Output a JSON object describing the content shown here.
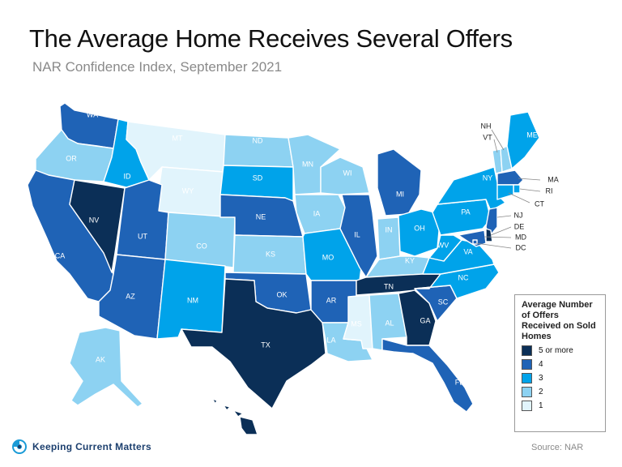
{
  "title": "The Average Home Receives Several Offers",
  "subtitle": "NAR Confidence Index, September 2021",
  "colors": {
    "5": "#0b2f57",
    "4": "#1f63b6",
    "3": "#00a3ea",
    "2": "#8dd2f2",
    "1": "#e1f4fc"
  },
  "legend": {
    "title": "Average Number of Offers Received on Sold Homes",
    "items": [
      {
        "label": "5 or more",
        "level": "5"
      },
      {
        "label": "4",
        "level": "4"
      },
      {
        "label": "3",
        "level": "3"
      },
      {
        "label": "2",
        "level": "2"
      },
      {
        "label": "1",
        "level": "1"
      }
    ]
  },
  "states": {
    "WA": 4,
    "OR": 2,
    "CA": 4,
    "NV": 5,
    "ID": 3,
    "MT": 1,
    "WY": 1,
    "UT": 4,
    "AZ": 4,
    "CO": 2,
    "NM": 3,
    "ND": 2,
    "SD": 3,
    "NE": 4,
    "KS": 2,
    "OK": 4,
    "TX": 5,
    "MN": 2,
    "IA": 2,
    "MO": 3,
    "AR": 4,
    "LA": 2,
    "WI": 2,
    "IL": 4,
    "MI": 4,
    "IN": 2,
    "OH": 3,
    "KY": 2,
    "TN": 5,
    "MS": 1,
    "AL": 2,
    "GA": 5,
    "FL": 4,
    "SC": 4,
    "NC": 3,
    "VA": 3,
    "WV": 3,
    "PA": 3,
    "NY": 3,
    "ME": 3,
    "VT": 2,
    "NH": 2,
    "MA": 4,
    "RI": 3,
    "CT": 3,
    "NJ": 4,
    "DE": 5,
    "MD": 4,
    "DC": 4,
    "AK": 2,
    "HI": 5
  },
  "footer": {
    "brand": "Keeping Current Matters",
    "source": "Source: NAR"
  }
}
